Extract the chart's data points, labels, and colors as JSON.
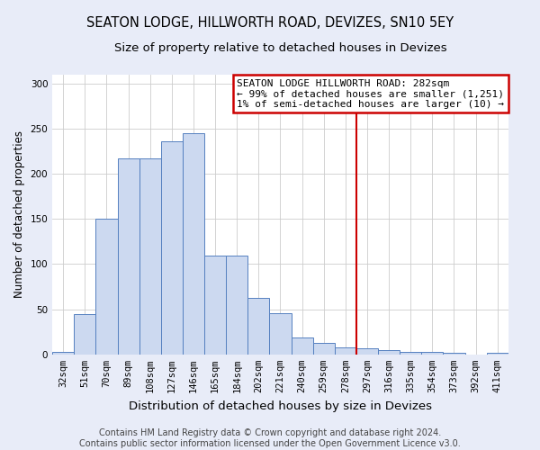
{
  "title": "SEATON LODGE, HILLWORTH ROAD, DEVIZES, SN10 5EY",
  "subtitle": "Size of property relative to detached houses in Devizes",
  "xlabel": "Distribution of detached houses by size in Devizes",
  "ylabel": "Number of detached properties",
  "categories": [
    "32sqm",
    "51sqm",
    "70sqm",
    "89sqm",
    "108sqm",
    "127sqm",
    "146sqm",
    "165sqm",
    "184sqm",
    "202sqm",
    "221sqm",
    "240sqm",
    "259sqm",
    "278sqm",
    "297sqm",
    "316sqm",
    "335sqm",
    "354sqm",
    "373sqm",
    "392sqm",
    "411sqm"
  ],
  "values": [
    3,
    45,
    150,
    217,
    217,
    236,
    245,
    109,
    109,
    63,
    46,
    19,
    13,
    8,
    7,
    5,
    3,
    3,
    2,
    0,
    2
  ],
  "bar_color": "#ccd9f0",
  "bar_edge_color": "#5580c0",
  "ylim": [
    0,
    310
  ],
  "yticks": [
    0,
    50,
    100,
    150,
    200,
    250,
    300
  ],
  "vline_color": "#cc0000",
  "annotation_text": "SEATON LODGE HILLWORTH ROAD: 282sqm\n← 99% of detached houses are smaller (1,251)\n1% of semi-detached houses are larger (10) →",
  "annotation_box_color": "#ffffff",
  "annotation_box_edge_color": "#cc0000",
  "footer1": "Contains HM Land Registry data © Crown copyright and database right 2024.",
  "footer2": "Contains public sector information licensed under the Open Government Licence v3.0.",
  "fig_background_color": "#e8ecf8",
  "plot_background": "#ffffff",
  "grid_color": "#cccccc",
  "title_fontsize": 10.5,
  "subtitle_fontsize": 9.5,
  "xlabel_fontsize": 9.5,
  "ylabel_fontsize": 8.5,
  "tick_fontsize": 7.5,
  "annotation_fontsize": 8,
  "footer_fontsize": 7
}
